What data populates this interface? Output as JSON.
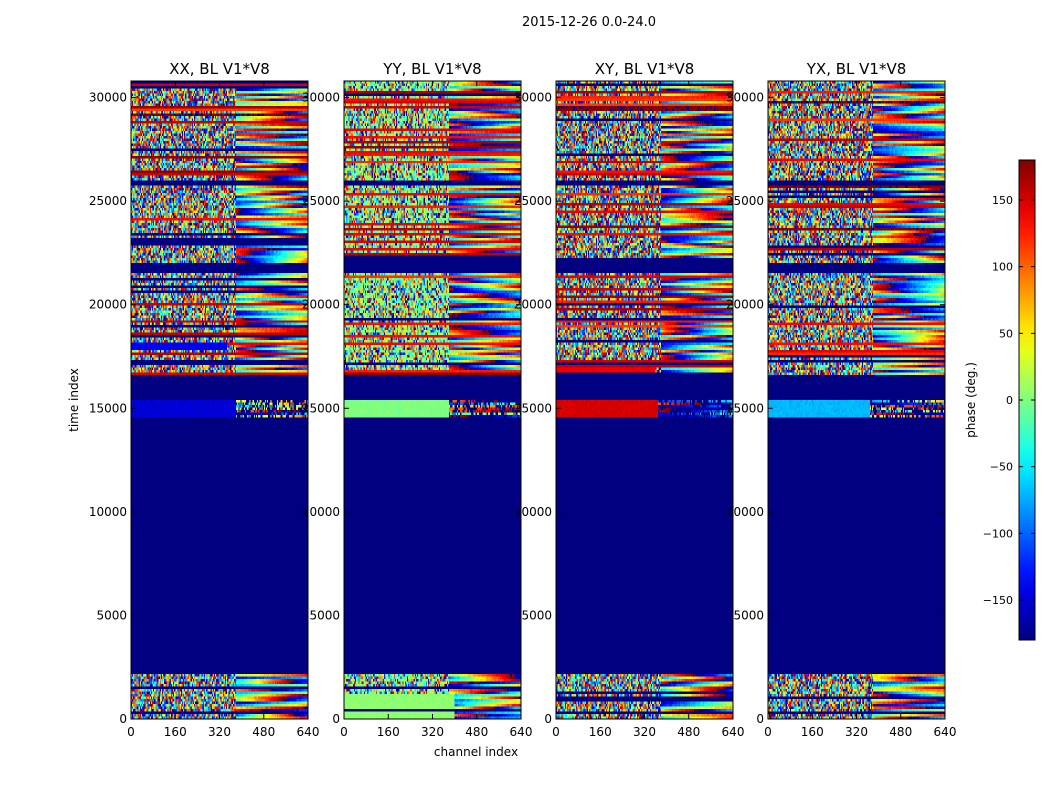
{
  "figure_title": "2015-12-26 0.0-24.0",
  "chart_data": {
    "type": "heatmap",
    "suptitle": "2015-12-26 0.0-24.0",
    "xlabel": "channel index",
    "ylabel": "time index",
    "xlim": [
      0,
      640
    ],
    "ylim": [
      0,
      30800
    ],
    "xticks": [
      0,
      160,
      320,
      480,
      640
    ],
    "yticks": [
      0,
      5000,
      10000,
      15000,
      20000,
      25000,
      30000
    ],
    "panels": [
      {
        "title": "XX, BL V1*V8",
        "pol": "XX"
      },
      {
        "title": "YY, BL V1*V8",
        "pol": "YY"
      },
      {
        "title": "XY, BL V1*V8",
        "pol": "XY"
      },
      {
        "title": "YX, BL V1*V8",
        "pol": "YX"
      }
    ],
    "colorbar": {
      "label": "phase (deg.)",
      "range": [
        -180,
        180
      ],
      "ticks": [
        -150,
        -100,
        -50,
        0,
        50,
        100,
        150
      ],
      "colormap": "jet"
    },
    "flagged_value": -180,
    "flagged_time_ranges": [
      [
        2200,
        14500
      ],
      [
        15400,
        16600
      ],
      [
        21500,
        22000
      ],
      [
        25800,
        26000
      ]
    ],
    "flagged_time_ranges_yy_xy": [
      [
        21500,
        22200
      ]
    ],
    "uniform_bands": [
      {
        "panel": "XX",
        "t0": 14600,
        "t1": 15400,
        "chan_max": 380,
        "phase": -150
      },
      {
        "panel": "XX",
        "t0": 17800,
        "t1": 18200,
        "chan_max": 350,
        "phase": -140
      },
      {
        "panel": "YY",
        "t0": 14600,
        "t1": 15400,
        "chan_max": 380,
        "phase": 0
      },
      {
        "panel": "YY",
        "t0": 0,
        "t1": 1200,
        "chan_max": 400,
        "phase": 5
      },
      {
        "panel": "XY",
        "t0": 14600,
        "t1": 15400,
        "chan_max": 370,
        "phase": 150
      },
      {
        "panel": "XY",
        "t0": 16700,
        "t1": 17000,
        "chan_max": 360,
        "phase": 140
      },
      {
        "panel": "YX",
        "t0": 14600,
        "t1": 15400,
        "chan_max": 370,
        "phase": -70
      }
    ]
  }
}
